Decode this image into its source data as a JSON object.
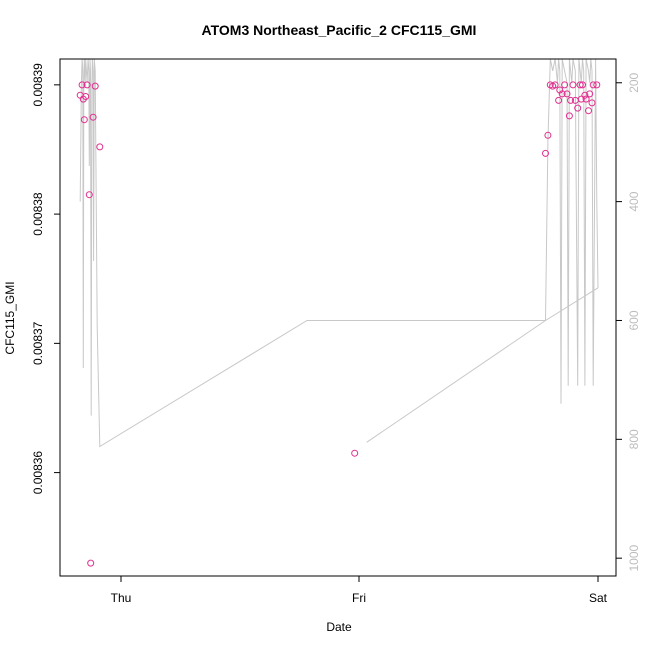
{
  "chart_data": {
    "type": "scatter",
    "title": "ATOM3 Northeast_Pacific_2 CFC115_GMI",
    "xlabel": "Date",
    "ylabel": "CFC115_GMI",
    "x_ticks": [
      "Thu",
      "Fri",
      "Sat"
    ],
    "x_range_days": [
      -0.2,
      2.0
    ],
    "y_ticks": [
      "0.00836",
      "0.00837",
      "0.00838",
      "0.00839"
    ],
    "ylim": [
      0.008352,
      0.008392
    ],
    "y2_ticks": [
      "200",
      "400",
      "600",
      "800",
      "1000"
    ],
    "y2lim": [
      1030,
      160
    ],
    "y2_reversed": true,
    "grid": false,
    "colors": {
      "points": "#e0308f",
      "line": "#c8c8c8",
      "right_axis_text": "#bdbdbd"
    },
    "series": [
      {
        "kind": "points",
        "x_days": [
          -0.171,
          -0.163,
          -0.158,
          -0.154,
          -0.148,
          -0.142,
          -0.133,
          -0.127,
          -0.117,
          -0.108,
          -0.089,
          0.98,
          1.78,
          1.79,
          1.8,
          1.81,
          1.82,
          1.835,
          1.84,
          1.85,
          1.86,
          1.87,
          1.88,
          1.885,
          1.895,
          1.905,
          1.915,
          1.925,
          1.93,
          1.935,
          1.945,
          1.95,
          1.96,
          1.965,
          1.975,
          1.98,
          1.995
        ],
        "y": [
          0.0083892,
          0.00839,
          0.0083889,
          0.0083873,
          0.0083891,
          0.00839,
          0.0083815,
          0.008353,
          0.0083875,
          0.0083899,
          0.0083852,
          0.0083615,
          0.0083847,
          0.0083861,
          0.00839,
          0.0083899,
          0.00839,
          0.0083888,
          0.0083896,
          0.0083893,
          0.00839,
          0.0083893,
          0.0083876,
          0.0083888,
          0.00839,
          0.0083888,
          0.0083882,
          0.00839,
          0.0083889,
          0.00839,
          0.0083892,
          0.0083889,
          0.008388,
          0.0083893,
          0.0083886,
          0.00839,
          0.00839
        ]
      },
      {
        "kind": "line",
        "label_axis": "right",
        "x_days": [
          -0.171,
          -0.166,
          -0.163,
          -0.16,
          -0.158,
          -0.156,
          -0.154,
          -0.152,
          -0.15,
          -0.148,
          -0.145,
          -0.142,
          -0.138,
          -0.135,
          -0.133,
          -0.13,
          -0.128,
          -0.125,
          -0.122,
          -0.12,
          -0.117,
          -0.115,
          -0.112,
          -0.108,
          -0.1,
          -0.089,
          0.78,
          1.78,
          1.79,
          1.8,
          1.81,
          1.82,
          1.83,
          1.835,
          1.84,
          1.845,
          1.85,
          1.86,
          1.87,
          1.875,
          1.88,
          1.885,
          1.89,
          1.895,
          1.905,
          1.915,
          1.92,
          1.925,
          1.93,
          1.935,
          1.94,
          1.945,
          1.95,
          1.96,
          1.965,
          1.97,
          1.975,
          1.98,
          1.99,
          1.995,
          2.0,
          1.78,
          1.03
        ],
        "y": [
          400,
          200,
          160,
          180,
          680,
          200,
          160,
          180,
          200,
          160,
          180,
          200,
          160,
          180,
          340,
          160,
          180,
          760,
          200,
          160,
          180,
          500,
          160,
          180,
          610,
          812,
          600,
          600,
          300,
          160,
          180,
          160,
          200,
          160,
          180,
          740,
          160,
          180,
          200,
          710,
          160,
          180,
          200,
          160,
          180,
          710,
          160,
          180,
          200,
          160,
          180,
          710,
          160,
          180,
          200,
          160,
          180,
          710,
          160,
          400,
          545,
          600,
          805
        ]
      }
    ]
  }
}
